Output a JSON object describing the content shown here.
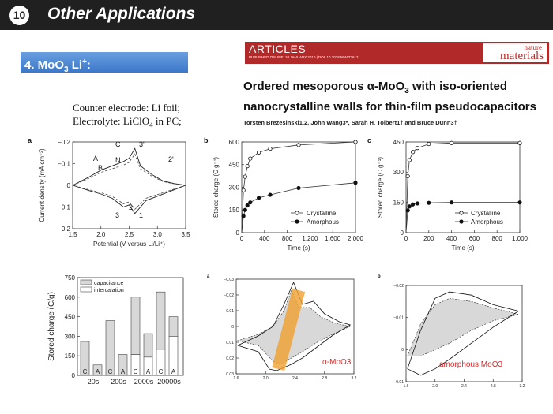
{
  "header": {
    "slide_number": "10",
    "title": "Other Applications"
  },
  "section": {
    "prefix": "4. MoO",
    "sub": "3",
    "mid": " Li",
    "sup": "+",
    "suffix": ":"
  },
  "conditions": {
    "line1": "Counter electrode: Li foil;",
    "line2_a": "Electrolyte: LiClO",
    "line2_sub": "4",
    "line2_b": " in PC;"
  },
  "journal": {
    "banner": "ARTICLES",
    "published": "PUBLISHED ONLINE: 10 JANUARY 2010 | DOI: 10.1038/NMAT2612",
    "brand_top": "nature",
    "brand_bottom": "materials"
  },
  "paper": {
    "title_line1": "Ordered mesoporous α-MoO",
    "title_sub": "3",
    "title_line1_end": " with iso-oriented",
    "title_line2": "nanocrystalline walls for thin-film pseudocapacitors",
    "authors": "Torsten Brezesinski1,2, John Wang3*, Sarah H. Tolbert1† and Bruce Dunn3†"
  },
  "colors": {
    "band": "#f0a030",
    "shade": "#d8d8d8",
    "label_red": "#d03030"
  },
  "chart_data": [
    {
      "panel": "a",
      "type": "line",
      "xlabel": "Potential (V versus Li/Li⁺)",
      "ylabel": "Current density (mA cm⁻²)",
      "xlim": [
        1.5,
        3.5
      ],
      "ylim": [
        -0.2,
        0.2
      ],
      "xticks": [
        "1.5",
        "2.0",
        "2.5",
        "3.0",
        "3.5"
      ],
      "yticks": [
        "0.2",
        "0.1",
        "0",
        "−0.1",
        "−0.2"
      ],
      "annotations": [
        "A",
        "B",
        "C",
        "N",
        "1",
        "2",
        "3",
        "2'",
        "3'"
      ],
      "series": [
        {
          "x": [
            1.5,
            1.8,
            2.0,
            2.2,
            2.4,
            2.5,
            2.6,
            2.7,
            2.9,
            3.1,
            3.3,
            3.5
          ],
          "y": [
            0.0,
            0.04,
            0.07,
            0.09,
            0.11,
            0.125,
            0.17,
            0.09,
            0.05,
            0.02,
            0.008,
            0.0
          ]
        },
        {
          "x": [
            3.5,
            3.2,
            3.0,
            2.8,
            2.6,
            2.5,
            2.4,
            2.2,
            2.0,
            1.8,
            1.5
          ],
          "y": [
            0.0,
            -0.03,
            -0.05,
            -0.07,
            -0.13,
            -0.09,
            -0.1,
            -0.06,
            -0.04,
            -0.025,
            0.0
          ]
        }
      ]
    },
    {
      "panel": "b",
      "type": "line",
      "xlabel": "Time (s)",
      "ylabel": "Stored charge (C g⁻¹)",
      "xlim": [
        0,
        2000
      ],
      "ylim": [
        0,
        600
      ],
      "xticks": [
        "0",
        "400",
        "800",
        "1,200",
        "1,600",
        "2,000"
      ],
      "yticks": [
        "0",
        "150",
        "300",
        "450",
        "600"
      ],
      "series": [
        {
          "name": "Crystalline",
          "x": [
            0,
            30,
            60,
            100,
            150,
            300,
            500,
            1000,
            2000
          ],
          "y": [
            0,
            280,
            370,
            440,
            490,
            530,
            555,
            580,
            600
          ]
        },
        {
          "name": "Amorphous",
          "x": [
            0,
            30,
            60,
            100,
            150,
            300,
            500,
            1000,
            2000
          ],
          "y": [
            0,
            110,
            150,
            180,
            200,
            230,
            250,
            295,
            330
          ]
        }
      ]
    },
    {
      "panel": "c",
      "type": "line",
      "xlabel": "Time (s)",
      "ylabel": "Stored charge (C g⁻¹)",
      "xlim": [
        0,
        1000
      ],
      "ylim": [
        0,
        450
      ],
      "xticks": [
        "0",
        "200",
        "400",
        "600",
        "800",
        "1,000"
      ],
      "yticks": [
        "0",
        "150",
        "300",
        "450"
      ],
      "series": [
        {
          "name": "Crystalline",
          "x": [
            0,
            15,
            30,
            60,
            100,
            200,
            400,
            1000
          ],
          "y": [
            0,
            280,
            360,
            400,
            420,
            440,
            445,
            445
          ]
        },
        {
          "name": "Amorphous",
          "x": [
            0,
            15,
            30,
            60,
            100,
            200,
            400,
            1000
          ],
          "y": [
            0,
            110,
            130,
            140,
            145,
            148,
            150,
            150
          ]
        }
      ]
    },
    {
      "panel": "bars",
      "type": "bar",
      "ylabel": "Stored charge (C/g)",
      "ylim": [
        0,
        750
      ],
      "yticks": [
        "750",
        "600",
        "450",
        "300",
        "150",
        "0"
      ],
      "groups": [
        "20s",
        "200s",
        "2000s",
        "20000s"
      ],
      "bar_labels": [
        "C",
        "A",
        "C",
        "A",
        "C",
        "A",
        "C",
        "A"
      ],
      "legend": [
        "capacitance",
        "intercalation"
      ],
      "capacitance": [
        260,
        80,
        420,
        160,
        440,
        180,
        440,
        150
      ],
      "intercalation": [
        0,
        0,
        0,
        0,
        160,
        140,
        200,
        300
      ]
    },
    {
      "panel": "d",
      "type": "line",
      "label": "α-MoO3",
      "xlim": [
        1.6,
        3.2
      ],
      "ylim": [
        -0.03,
        0.03
      ],
      "xticks": [
        "1.6",
        "2.0",
        "2.4",
        "2.8",
        "3.2"
      ],
      "yticks": [
        "0.03",
        "0.02",
        "0.01",
        "0",
        "−0.01",
        "−0.02",
        "−0.03"
      ]
    },
    {
      "panel": "e",
      "type": "line",
      "label": "amorphous MoO3",
      "xlim": [
        1.6,
        3.2
      ],
      "ylim": [
        -0.02,
        0.01
      ],
      "xticks": [
        "1.6",
        "2.0",
        "2.4",
        "2.8",
        "3.2"
      ],
      "yticks": [
        "0.01",
        "0",
        "−0.01",
        "−0.02"
      ]
    }
  ]
}
